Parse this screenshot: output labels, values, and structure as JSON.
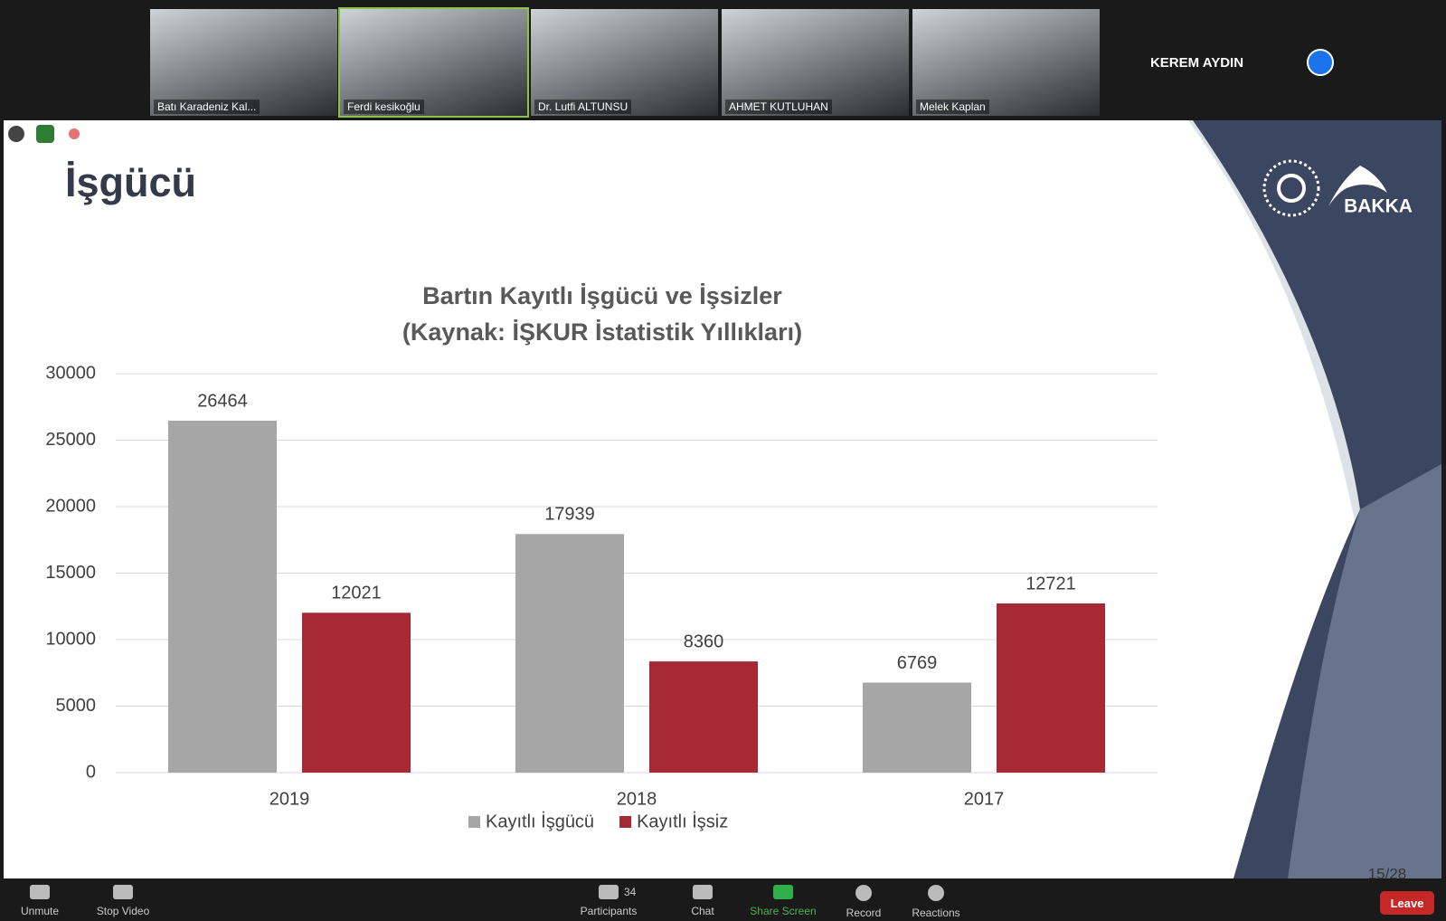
{
  "participants": [
    {
      "name": "Batı Karadeniz Kal..."
    },
    {
      "name": "Ferdi kesikoğlu"
    },
    {
      "name": "Dr. Lutfi ALTUNSU"
    },
    {
      "name": "AHMET KUTLUHAN"
    },
    {
      "name": "Melek Kaplan"
    }
  ],
  "spotlight_name": "KEREM AYDIN",
  "slide": {
    "title": "İşgücü",
    "logo_text": "BAKKA",
    "page": "15/28"
  },
  "chart_data": {
    "type": "bar",
    "title": "Bartın Kayıtlı İşgücü ve İşsizler",
    "subtitle": "(Kaynak: İŞKUR İstatistik Yıllıkları)",
    "categories": [
      "2019",
      "2018",
      "2017"
    ],
    "series": [
      {
        "name": "Kayıtlı İşgücü",
        "color": "#a6a6a6",
        "values": [
          26464,
          17939,
          6769
        ]
      },
      {
        "name": "Kayıtlı İşsiz",
        "color": "#a52a36",
        "values": [
          12021,
          8360,
          12721
        ]
      }
    ],
    "ylim": [
      0,
      30000
    ],
    "yticks": [
      0,
      5000,
      10000,
      15000,
      20000,
      25000,
      30000
    ],
    "grid": true,
    "legend": "bottom"
  },
  "toolbar": {
    "buttons": [
      {
        "label": "Unmute"
      },
      {
        "label": "Stop Video"
      },
      {
        "label": "Participants"
      },
      {
        "label": "Chat"
      },
      {
        "label": "Share Screen"
      },
      {
        "label": "Record"
      },
      {
        "label": "Reactions"
      }
    ],
    "participant_count": 34,
    "leave": "Leave"
  }
}
